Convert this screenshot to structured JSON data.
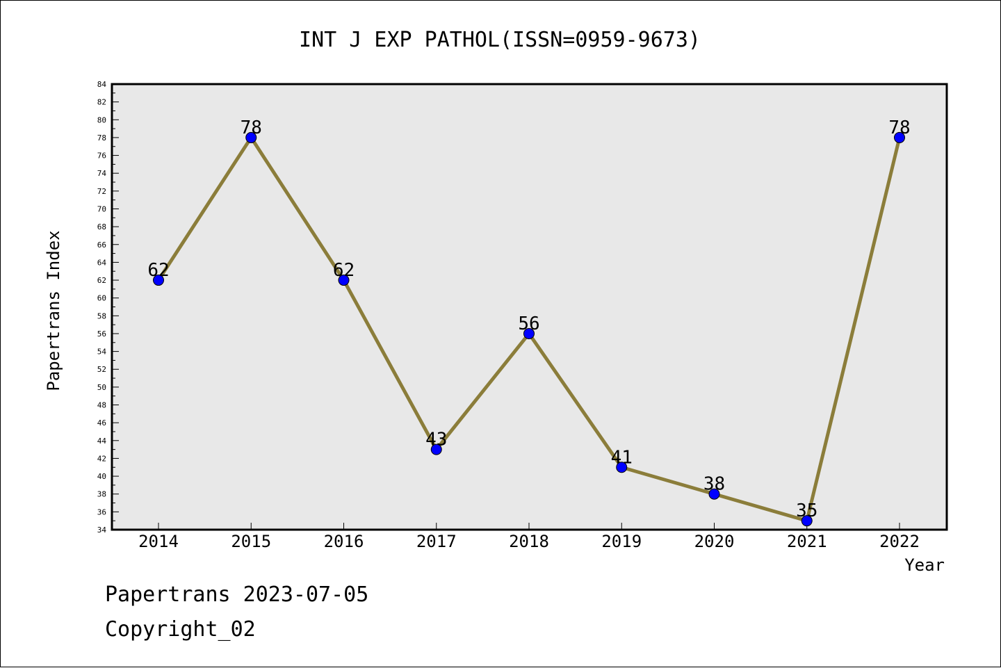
{
  "chart_data": {
    "type": "line",
    "title": "INT J EXP PATHOL(ISSN=0959-9673)",
    "xlabel": "Year",
    "ylabel": "Papertrans Index",
    "categories": [
      "2014",
      "2015",
      "2016",
      "2017",
      "2018",
      "2019",
      "2020",
      "2021",
      "2022"
    ],
    "series": [
      {
        "values": [
          62,
          78,
          62,
          43,
          56,
          41,
          38,
          35,
          78
        ]
      }
    ],
    "ylim": [
      34,
      84
    ],
    "ytick_step": 2,
    "grid": false,
    "colors": {
      "plot_background": "#e8e8e8",
      "line": "#8b7d3a",
      "marker": "#0000ff"
    }
  },
  "footer": {
    "line1": "Papertrans 2023-07-05",
    "line2": "Copyright_02"
  }
}
